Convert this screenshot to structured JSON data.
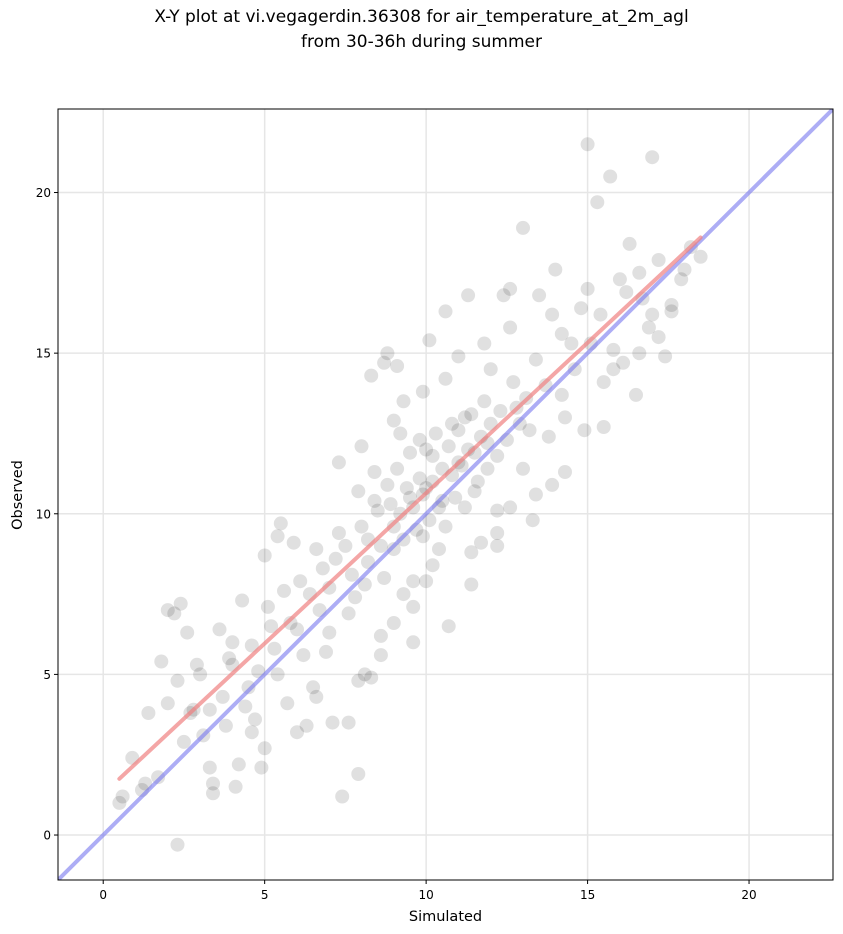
{
  "chart_data": {
    "type": "scatter",
    "title": "X-Y plot at vi.vegagerdin.36308 for air_temperature_at_2m_agl",
    "subtitle": "from 30-36h during summer",
    "xlabel": "Simulated",
    "ylabel": "Observed",
    "xlim": [
      -1.4,
      22.6
    ],
    "ylim": [
      -1.4,
      22.6
    ],
    "xticks": [
      0,
      5,
      10,
      15,
      20
    ],
    "yticks": [
      0,
      5,
      10,
      15,
      20
    ],
    "xtick_labels": [
      "0",
      "5",
      "10",
      "15",
      "20"
    ],
    "ytick_labels": [
      "0",
      "5",
      "10",
      "15",
      "20"
    ],
    "grid": true,
    "colors": {
      "points": "#000000",
      "regression": "#f08080",
      "identity": "#7777ee"
    },
    "regression_line": {
      "x": [
        0.5,
        18.5
      ],
      "y": [
        1.75,
        18.6
      ]
    },
    "identity_line": {
      "x": [
        -1.4,
        22.6
      ],
      "y": [
        -1.4,
        22.6
      ]
    },
    "points": [
      [
        0.5,
        1.0
      ],
      [
        0.6,
        1.2
      ],
      [
        0.9,
        2.4
      ],
      [
        1.2,
        1.4
      ],
      [
        1.4,
        3.8
      ],
      [
        1.7,
        1.8
      ],
      [
        1.8,
        5.4
      ],
      [
        2.0,
        7.0
      ],
      [
        2.2,
        6.9
      ],
      [
        2.3,
        4.8
      ],
      [
        2.4,
        7.2
      ],
      [
        2.5,
        2.9
      ],
      [
        2.6,
        6.3
      ],
      [
        2.8,
        3.9
      ],
      [
        2.9,
        5.3
      ],
      [
        3.1,
        3.1
      ],
      [
        3.3,
        2.1
      ],
      [
        3.4,
        1.6
      ],
      [
        3.4,
        1.3
      ],
      [
        3.6,
        6.4
      ],
      [
        3.8,
        3.4
      ],
      [
        3.9,
        5.5
      ],
      [
        4.0,
        6.0
      ],
      [
        4.1,
        1.5
      ],
      [
        4.2,
        2.2
      ],
      [
        4.3,
        7.3
      ],
      [
        4.5,
        4.6
      ],
      [
        4.7,
        3.6
      ],
      [
        4.9,
        2.1
      ],
      [
        5.0,
        8.7
      ],
      [
        5.2,
        6.5
      ],
      [
        5.4,
        9.3
      ],
      [
        5.5,
        9.7
      ],
      [
        5.7,
        4.1
      ],
      [
        5.9,
        9.1
      ],
      [
        6.1,
        7.9
      ],
      [
        6.3,
        3.4
      ],
      [
        6.5,
        4.6
      ],
      [
        6.7,
        7.0
      ],
      [
        6.9,
        5.7
      ],
      [
        7.1,
        3.5
      ],
      [
        7.2,
        8.6
      ],
      [
        7.3,
        11.6
      ],
      [
        7.4,
        1.2
      ],
      [
        7.6,
        3.5
      ],
      [
        7.8,
        7.4
      ],
      [
        7.9,
        1.9
      ],
      [
        8.0,
        12.1
      ],
      [
        8.1,
        5.0
      ],
      [
        8.2,
        9.2
      ],
      [
        8.3,
        14.3
      ],
      [
        8.5,
        10.1
      ],
      [
        8.6,
        6.2
      ],
      [
        8.7,
        14.7
      ],
      [
        8.8,
        15.0
      ],
      [
        9.0,
        8.9
      ],
      [
        9.1,
        14.6
      ],
      [
        9.2,
        12.5
      ],
      [
        9.3,
        7.5
      ],
      [
        9.5,
        10.5
      ],
      [
        9.6,
        7.9
      ],
      [
        9.8,
        12.3
      ],
      [
        9.9,
        9.3
      ],
      [
        10.0,
        10.8
      ],
      [
        10.1,
        15.4
      ],
      [
        10.2,
        11.8
      ],
      [
        10.4,
        8.9
      ],
      [
        10.5,
        10.4
      ],
      [
        10.6,
        16.3
      ],
      [
        10.8,
        12.8
      ],
      [
        11.0,
        11.6
      ],
      [
        11.2,
        13.0
      ],
      [
        11.3,
        16.8
      ],
      [
        11.5,
        10.7
      ],
      [
        11.7,
        9.1
      ],
      [
        11.9,
        12.2
      ],
      [
        12.0,
        14.5
      ],
      [
        12.2,
        9.4
      ],
      [
        12.4,
        16.8
      ],
      [
        12.6,
        17.0
      ],
      [
        12.8,
        13.3
      ],
      [
        13.0,
        18.9
      ],
      [
        13.2,
        12.6
      ],
      [
        13.4,
        10.6
      ],
      [
        13.5,
        16.8
      ],
      [
        13.7,
        14.0
      ],
      [
        13.9,
        16.2
      ],
      [
        14.0,
        17.6
      ],
      [
        14.2,
        13.7
      ],
      [
        14.3,
        11.3
      ],
      [
        14.5,
        15.3
      ],
      [
        14.8,
        16.4
      ],
      [
        15.0,
        21.5
      ],
      [
        15.1,
        15.3
      ],
      [
        15.3,
        19.7
      ],
      [
        15.5,
        12.7
      ],
      [
        15.7,
        20.5
      ],
      [
        15.8,
        14.5
      ],
      [
        16.0,
        17.3
      ],
      [
        16.3,
        18.4
      ],
      [
        16.5,
        13.7
      ],
      [
        16.7,
        16.7
      ],
      [
        16.9,
        15.8
      ],
      [
        17.0,
        21.1
      ],
      [
        17.2,
        17.9
      ],
      [
        17.4,
        14.9
      ],
      [
        17.6,
        16.3
      ],
      [
        17.9,
        17.3
      ],
      [
        18.2,
        18.3
      ],
      [
        18.5,
        18.0
      ],
      [
        5.4,
        5.0
      ],
      [
        6.0,
        6.4
      ],
      [
        6.4,
        7.5
      ],
      [
        6.8,
        8.3
      ],
      [
        7.0,
        6.3
      ],
      [
        7.5,
        9.0
      ],
      [
        7.7,
        8.1
      ],
      [
        8.0,
        9.6
      ],
      [
        8.2,
        8.5
      ],
      [
        8.4,
        10.4
      ],
      [
        8.6,
        9.0
      ],
      [
        8.8,
        10.9
      ],
      [
        8.9,
        10.3
      ],
      [
        9.0,
        9.6
      ],
      [
        9.1,
        11.4
      ],
      [
        9.2,
        10.0
      ],
      [
        9.3,
        9.2
      ],
      [
        9.4,
        10.8
      ],
      [
        9.5,
        11.9
      ],
      [
        9.6,
        10.2
      ],
      [
        9.7,
        9.5
      ],
      [
        9.8,
        11.1
      ],
      [
        9.9,
        10.6
      ],
      [
        10.0,
        12.0
      ],
      [
        10.1,
        9.8
      ],
      [
        10.2,
        11.0
      ],
      [
        10.3,
        12.5
      ],
      [
        10.4,
        10.2
      ],
      [
        10.5,
        11.4
      ],
      [
        10.6,
        9.6
      ],
      [
        10.7,
        12.1
      ],
      [
        10.8,
        11.2
      ],
      [
        10.9,
        10.5
      ],
      [
        11.0,
        12.6
      ],
      [
        11.1,
        11.5
      ],
      [
        11.2,
        10.2
      ],
      [
        11.3,
        12.0
      ],
      [
        11.4,
        13.1
      ],
      [
        11.5,
        11.9
      ],
      [
        11.6,
        11.0
      ],
      [
        11.7,
        12.4
      ],
      [
        11.8,
        13.5
      ],
      [
        11.9,
        11.4
      ],
      [
        12.0,
        12.8
      ],
      [
        12.2,
        11.8
      ],
      [
        12.3,
        13.2
      ],
      [
        12.5,
        12.3
      ],
      [
        12.7,
        14.1
      ],
      [
        12.9,
        12.8
      ],
      [
        13.1,
        13.6
      ],
      [
        3.7,
        4.3
      ],
      [
        4.0,
        5.3
      ],
      [
        4.4,
        4.0
      ],
      [
        4.6,
        5.9
      ],
      [
        4.8,
        5.1
      ],
      [
        5.1,
        7.1
      ],
      [
        5.3,
        5.8
      ],
      [
        5.6,
        7.6
      ],
      [
        5.8,
        6.6
      ],
      [
        6.2,
        5.6
      ],
      [
        6.6,
        8.9
      ],
      [
        7.0,
        7.7
      ],
      [
        7.3,
        9.4
      ],
      [
        7.6,
        6.9
      ],
      [
        7.9,
        10.7
      ],
      [
        8.1,
        7.8
      ],
      [
        8.4,
        11.3
      ],
      [
        8.7,
        8.0
      ],
      [
        9.0,
        12.9
      ],
      [
        9.3,
        13.5
      ],
      [
        9.6,
        7.1
      ],
      [
        9.9,
        13.8
      ],
      [
        10.2,
        8.4
      ],
      [
        10.6,
        14.2
      ],
      [
        11.0,
        14.9
      ],
      [
        11.4,
        8.8
      ],
      [
        11.8,
        15.3
      ],
      [
        12.2,
        10.1
      ],
      [
        12.6,
        15.8
      ],
      [
        13.0,
        11.4
      ],
      [
        13.4,
        14.8
      ],
      [
        13.8,
        12.4
      ],
      [
        14.2,
        15.6
      ],
      [
        14.6,
        14.5
      ],
      [
        15.0,
        17.0
      ],
      [
        15.4,
        16.2
      ],
      [
        15.8,
        15.1
      ],
      [
        16.2,
        16.9
      ],
      [
        16.6,
        17.5
      ],
      [
        17.0,
        16.2
      ],
      [
        2.3,
        -0.3
      ],
      [
        3.3,
        3.9
      ],
      [
        2.0,
        4.1
      ],
      [
        1.3,
        1.6
      ],
      [
        2.7,
        3.8
      ],
      [
        3.0,
        5.0
      ],
      [
        4.6,
        3.2
      ],
      [
        5.0,
        2.7
      ],
      [
        6.0,
        3.2
      ],
      [
        6.6,
        4.3
      ],
      [
        7.9,
        4.8
      ],
      [
        8.3,
        4.9
      ],
      [
        8.6,
        5.6
      ],
      [
        9.0,
        6.6
      ],
      [
        9.6,
        6.0
      ],
      [
        10.0,
        7.9
      ],
      [
        10.7,
        6.5
      ],
      [
        11.4,
        7.8
      ],
      [
        12.2,
        9.0
      ],
      [
        12.6,
        10.2
      ],
      [
        13.3,
        9.8
      ],
      [
        13.9,
        10.9
      ],
      [
        14.3,
        13.0
      ],
      [
        14.9,
        12.6
      ],
      [
        15.5,
        14.1
      ],
      [
        16.1,
        14.7
      ],
      [
        16.6,
        15.0
      ],
      [
        17.2,
        15.5
      ],
      [
        17.6,
        16.5
      ],
      [
        18.0,
        17.6
      ]
    ]
  }
}
